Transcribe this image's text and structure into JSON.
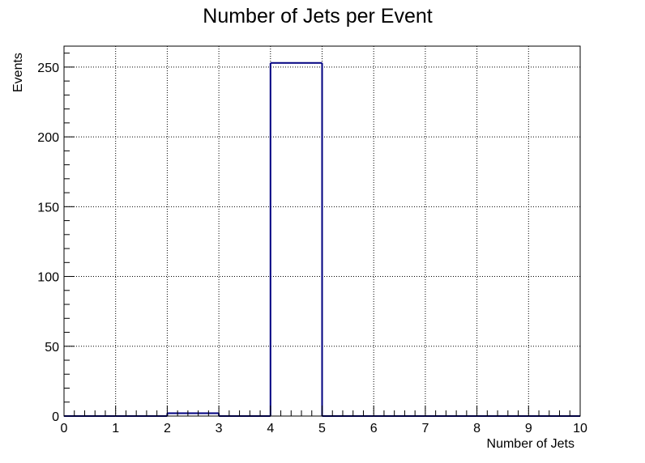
{
  "chart_data": {
    "type": "bar",
    "style": "step-histogram",
    "title": "Number of Jets per Event",
    "xlabel": "Number of Jets",
    "ylabel": "Events",
    "bin_edges": [
      0,
      1,
      2,
      3,
      4,
      5,
      6,
      7,
      8,
      9,
      10
    ],
    "values": [
      0,
      0,
      2,
      0,
      253,
      0,
      0,
      0,
      0,
      0
    ],
    "xlim": [
      0,
      10
    ],
    "ylim": [
      0,
      265
    ],
    "x_ticks": [
      "0",
      "1",
      "2",
      "3",
      "4",
      "5",
      "6",
      "7",
      "8",
      "9",
      "10"
    ],
    "y_ticks": [
      "0",
      "50",
      "100",
      "150",
      "200",
      "250"
    ],
    "grid": true,
    "line_color": "#000080"
  }
}
